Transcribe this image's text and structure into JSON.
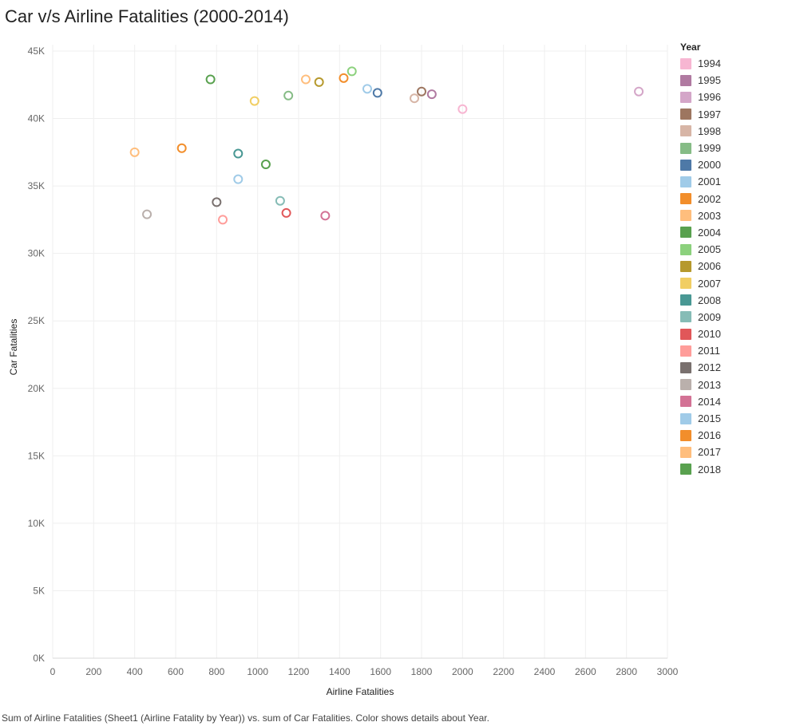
{
  "title": "Car v/s Airline Fatalities (2000-2014)",
  "footer": "Sum of Airline Fatalities (Sheet1 (Airline Fatality by Year)) vs. sum of Car Fatalities.  Color shows details about Year.",
  "chart_data": {
    "type": "scatter",
    "xlabel": "Airline Fatalities",
    "ylabel": "Car Fatalities",
    "xlim": [
      0,
      3000
    ],
    "ylim": [
      0,
      45000
    ],
    "x_ticks": [
      0,
      200,
      400,
      600,
      800,
      1000,
      1200,
      1400,
      1600,
      1800,
      2000,
      2200,
      2400,
      2600,
      2800,
      3000
    ],
    "x_tick_labels": [
      "0",
      "200",
      "400",
      "600",
      "800",
      "1000",
      "1200",
      "1400",
      "1600",
      "1800",
      "2000",
      "2200",
      "2400",
      "2600",
      "2800",
      "3000"
    ],
    "y_ticks": [
      0,
      5000,
      10000,
      15000,
      20000,
      25000,
      30000,
      35000,
      40000,
      45000
    ],
    "y_tick_labels": [
      "0K",
      "5K",
      "10K",
      "15K",
      "20K",
      "25K",
      "30K",
      "35K",
      "40K",
      "45K"
    ],
    "grid": true,
    "legend_title": "Year",
    "legend_position": "right",
    "legend": [
      {
        "label": "1994",
        "color": "#f7b6d2"
      },
      {
        "label": "1995",
        "color": "#b07aa1"
      },
      {
        "label": "1996",
        "color": "#d4a6c8"
      },
      {
        "label": "1997",
        "color": "#9d7660"
      },
      {
        "label": "1998",
        "color": "#d7b5a6"
      },
      {
        "label": "1999",
        "color": "#86bc86"
      },
      {
        "label": "2000",
        "color": "#4e79a7"
      },
      {
        "label": "2001",
        "color": "#a0cbe8"
      },
      {
        "label": "2002",
        "color": "#f28e2b"
      },
      {
        "label": "2003",
        "color": "#ffbe7d"
      },
      {
        "label": "2004",
        "color": "#59a14f"
      },
      {
        "label": "2005",
        "color": "#8cd17d"
      },
      {
        "label": "2006",
        "color": "#b6992d"
      },
      {
        "label": "2007",
        "color": "#f1ce63"
      },
      {
        "label": "2008",
        "color": "#499894"
      },
      {
        "label": "2009",
        "color": "#86bcb6"
      },
      {
        "label": "2010",
        "color": "#e15759"
      },
      {
        "label": "2011",
        "color": "#ff9d9a"
      },
      {
        "label": "2012",
        "color": "#79706e"
      },
      {
        "label": "2013",
        "color": "#bab0ac"
      },
      {
        "label": "2014",
        "color": "#d37295"
      },
      {
        "label": "2015",
        "color": "#a0cbe8"
      },
      {
        "label": "2016",
        "color": "#f28e2b"
      },
      {
        "label": "2017",
        "color": "#ffbe7d"
      },
      {
        "label": "2018",
        "color": "#59a14f"
      }
    ],
    "points": [
      {
        "year": "1994",
        "x": 2000,
        "y": 40700
      },
      {
        "year": "1995",
        "x": 1850,
        "y": 41800
      },
      {
        "year": "1996",
        "x": 2860,
        "y": 42000
      },
      {
        "year": "1997",
        "x": 1800,
        "y": 42000
      },
      {
        "year": "1998",
        "x": 1765,
        "y": 41500
      },
      {
        "year": "1999",
        "x": 1150,
        "y": 41700
      },
      {
        "year": "2000",
        "x": 1585,
        "y": 41900
      },
      {
        "year": "2001",
        "x": 1535,
        "y": 42200
      },
      {
        "year": "2002",
        "x": 1420,
        "y": 43000
      },
      {
        "year": "2003",
        "x": 1235,
        "y": 42900
      },
      {
        "year": "2004",
        "x": 1040,
        "y": 36600
      },
      {
        "year": "2005",
        "x": 1460,
        "y": 43500
      },
      {
        "year": "2006",
        "x": 1300,
        "y": 42700
      },
      {
        "year": "2007",
        "x": 985,
        "y": 41300
      },
      {
        "year": "2008",
        "x": 905,
        "y": 37400
      },
      {
        "year": "2009",
        "x": 1110,
        "y": 33900
      },
      {
        "year": "2010",
        "x": 1140,
        "y": 33000
      },
      {
        "year": "2011",
        "x": 830,
        "y": 32500
      },
      {
        "year": "2012",
        "x": 800,
        "y": 33800
      },
      {
        "year": "2013",
        "x": 460,
        "y": 32900
      },
      {
        "year": "2014",
        "x": 1330,
        "y": 32800
      },
      {
        "year": "2015",
        "x": 905,
        "y": 35500
      },
      {
        "year": "2016",
        "x": 630,
        "y": 37800
      },
      {
        "year": "2017",
        "x": 400,
        "y": 37500
      },
      {
        "year": "2018",
        "x": 770,
        "y": 42900
      }
    ]
  }
}
